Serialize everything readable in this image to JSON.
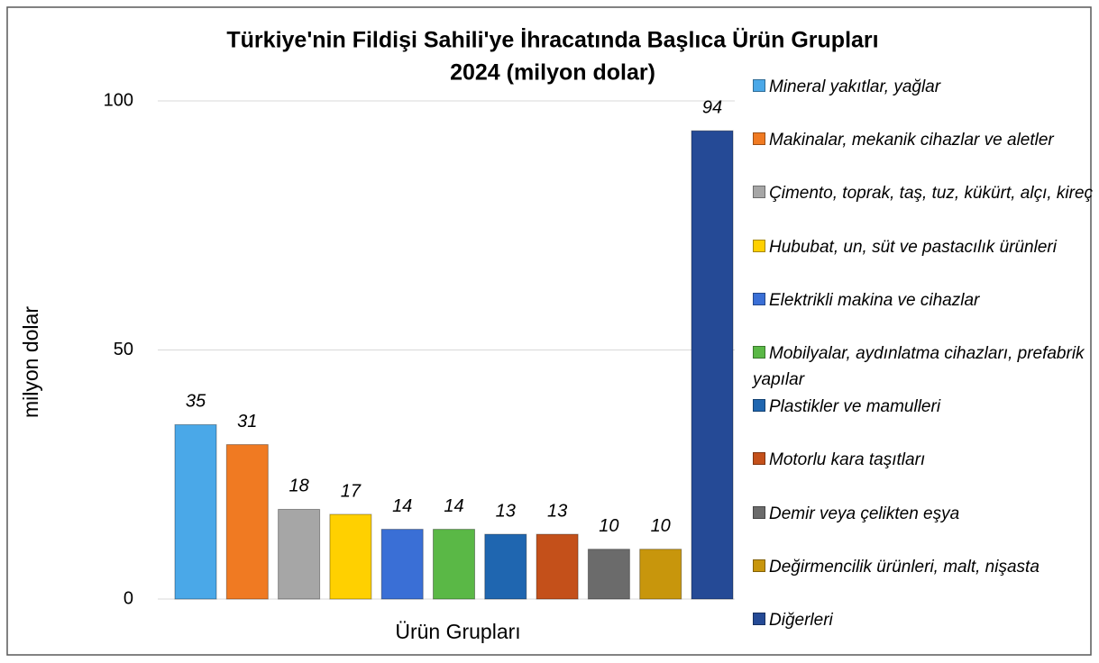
{
  "chart_data": {
    "type": "bar",
    "title": [
      "Türkiye'nin Fildişi Sahili'ye İhracatında Başlıca Ürün Grupları",
      "2024 (milyon dolar)"
    ],
    "x_label": "Ürün Grupları",
    "y_label": "milyon dolar",
    "categories": [
      null
    ],
    "series": [
      {
        "name": "Mineral yakıtlar, yağlar",
        "color": "#4aa8e8",
        "values": [
          35
        ]
      },
      {
        "name": "Makinalar, mekanik cihazlar ve aletler",
        "color": "#f07a22",
        "values": [
          31
        ]
      },
      {
        "name": "Çimento, toprak, taş, tuz, kükürt, alçı, kireç",
        "color": "#a6a6a6",
        "values": [
          18
        ]
      },
      {
        "name": "Hububat, un, süt ve pastacılık ürünleri",
        "color": "#ffd000",
        "values": [
          17
        ]
      },
      {
        "name": "Elektrikli makina ve cihazlar",
        "color": "#3a6fd6",
        "values": [
          14
        ]
      },
      {
        "name": "Mobilyalar, aydınlatma cihazları, prefabrik yapılar",
        "color": "#5ab846",
        "values": [
          14
        ]
      },
      {
        "name": "Plastikler ve mamulleri",
        "color": "#1f66b0",
        "values": [
          13
        ]
      },
      {
        "name": "Motorlu kara taşıtları",
        "color": "#c4501a",
        "values": [
          13
        ]
      },
      {
        "name": "Demir veya çelikten eşya",
        "color": "#6b6b6b",
        "values": [
          10
        ]
      },
      {
        "name": "Değirmencilik ürünleri, malt, nişasta",
        "color": "#c8960c",
        "values": [
          10
        ]
      },
      {
        "name": "Diğerleri",
        "color": "#254a96",
        "values": [
          94
        ]
      }
    ],
    "ylim": [
      0,
      100
    ],
    "yticks": [
      0,
      50,
      100
    ],
    "grid": true,
    "legend": "right"
  }
}
